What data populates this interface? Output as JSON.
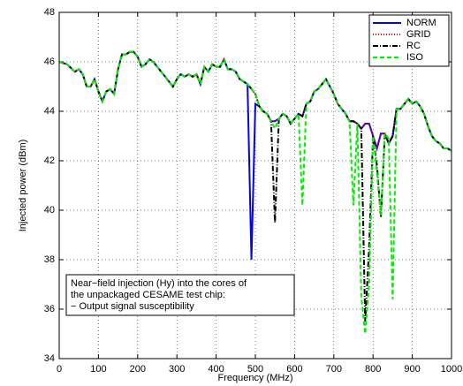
{
  "chart_data": {
    "type": "line",
    "xlabel": "Frequency (MHz)",
    "ylabel": "Injected power (dBm)",
    "annotation": [
      "Near−field injection (Hy) into the cores of",
      "the unpackaged CESAME test chip:",
      "− Output signal susceptibility"
    ],
    "x": [
      0,
      10,
      20,
      30,
      40,
      50,
      60,
      70,
      80,
      90,
      100,
      110,
      120,
      130,
      140,
      150,
      160,
      170,
      180,
      190,
      200,
      210,
      220,
      230,
      240,
      250,
      260,
      270,
      280,
      290,
      300,
      310,
      320,
      330,
      340,
      350,
      360,
      370,
      380,
      390,
      400,
      410,
      420,
      430,
      440,
      450,
      460,
      470,
      480,
      490,
      500,
      510,
      520,
      530,
      540,
      550,
      560,
      570,
      580,
      590,
      600,
      610,
      620,
      630,
      640,
      650,
      660,
      670,
      680,
      690,
      700,
      710,
      720,
      730,
      740,
      750,
      760,
      770,
      780,
      790,
      800,
      810,
      820,
      830,
      840,
      850,
      860,
      870,
      880,
      890,
      900,
      910,
      920,
      930,
      940,
      950,
      960,
      970,
      980,
      990,
      1000
    ],
    "series": [
      {
        "name": "NORM",
        "color": "#0000ff",
        "linestyle": "-",
        "values": [
          46.0,
          45.95,
          45.9,
          45.75,
          45.6,
          45.7,
          45.5,
          45.0,
          45.0,
          45.3,
          44.8,
          44.4,
          44.8,
          44.9,
          44.7,
          45.7,
          46.3,
          46.3,
          46.4,
          46.4,
          46.2,
          45.8,
          45.9,
          46.1,
          46.0,
          45.8,
          45.6,
          45.4,
          45.2,
          45.0,
          45.3,
          45.5,
          45.4,
          45.5,
          45.4,
          45.5,
          45.1,
          45.8,
          45.6,
          45.9,
          45.8,
          45.8,
          46.1,
          45.7,
          45.7,
          45.6,
          45.3,
          45.2,
          45.1,
          38.0,
          44.3,
          44.2,
          44.0,
          43.9,
          43.6,
          43.6,
          43.7,
          43.9,
          43.8,
          43.5,
          43.7,
          43.9,
          43.8,
          44.3,
          44.4,
          44.8,
          44.9,
          45.1,
          45.3,
          45.0,
          44.7,
          44.3,
          44.1,
          43.9,
          43.6,
          43.6,
          43.5,
          43.3,
          43.5,
          43.5,
          43.0,
          42.5,
          43.1,
          43.1,
          42.7,
          43.0,
          44.1,
          44.1,
          44.3,
          44.5,
          44.3,
          44.4,
          44.2,
          43.9,
          43.4,
          43.0,
          42.8,
          42.7,
          42.5,
          42.5,
          42.4
        ]
      },
      {
        "name": "GRID",
        "color": "#ff0000",
        "linestyle": ":",
        "values": [
          46.0,
          45.95,
          45.9,
          45.75,
          45.6,
          45.7,
          45.5,
          45.0,
          45.0,
          45.3,
          44.8,
          44.4,
          44.8,
          44.9,
          44.7,
          45.7,
          46.3,
          46.3,
          46.4,
          46.4,
          46.2,
          45.8,
          45.9,
          46.1,
          46.0,
          45.8,
          45.6,
          45.4,
          45.2,
          45.0,
          45.3,
          45.5,
          45.4,
          45.5,
          45.4,
          45.5,
          45.1,
          45.8,
          45.6,
          45.9,
          45.8,
          45.8,
          46.1,
          45.7,
          45.7,
          45.6,
          45.3,
          45.2,
          45.1,
          44.9,
          44.7,
          44.2,
          44.0,
          43.9,
          43.6,
          43.6,
          43.7,
          43.9,
          43.8,
          43.5,
          43.7,
          43.9,
          43.8,
          44.3,
          44.4,
          44.8,
          44.9,
          45.1,
          45.3,
          45.0,
          44.7,
          44.3,
          44.1,
          43.9,
          43.6,
          43.6,
          43.5,
          43.3,
          43.5,
          43.5,
          43.0,
          42.5,
          43.1,
          43.1,
          42.7,
          43.0,
          44.1,
          44.1,
          44.3,
          44.5,
          44.3,
          44.4,
          44.2,
          43.9,
          43.4,
          43.0,
          42.8,
          42.7,
          42.5,
          42.5,
          42.4
        ]
      },
      {
        "name": "RC",
        "color": "#000000",
        "linestyle": "-.",
        "values": [
          46.0,
          45.95,
          45.9,
          45.75,
          45.6,
          45.7,
          45.5,
          45.0,
          45.0,
          45.3,
          44.8,
          44.4,
          44.8,
          44.9,
          44.7,
          45.7,
          46.3,
          46.3,
          46.4,
          46.4,
          46.2,
          45.8,
          45.9,
          46.1,
          46.0,
          45.8,
          45.6,
          45.4,
          45.2,
          45.0,
          45.3,
          45.5,
          45.4,
          45.5,
          45.4,
          45.5,
          45.1,
          45.8,
          45.6,
          45.9,
          45.8,
          45.8,
          46.1,
          45.7,
          45.7,
          45.6,
          45.3,
          45.2,
          45.1,
          44.9,
          44.7,
          44.2,
          44.0,
          43.9,
          43.6,
          39.5,
          43.7,
          43.9,
          43.8,
          43.5,
          43.7,
          43.9,
          43.8,
          44.3,
          44.4,
          44.8,
          44.9,
          45.1,
          45.3,
          45.0,
          44.7,
          44.3,
          44.1,
          43.9,
          43.6,
          43.6,
          43.5,
          43.3,
          35.5,
          38.5,
          43.0,
          41.8,
          39.7,
          43.1,
          42.7,
          43.0,
          44.1,
          44.1,
          44.3,
          44.5,
          44.3,
          44.4,
          44.2,
          43.9,
          43.4,
          43.0,
          42.8,
          42.7,
          42.5,
          42.5,
          42.4
        ]
      },
      {
        "name": "ISO",
        "color": "#00ee00",
        "linestyle": "--",
        "values": [
          46.0,
          45.95,
          45.9,
          45.75,
          45.6,
          45.7,
          45.5,
          45.0,
          45.0,
          45.3,
          44.8,
          44.4,
          44.8,
          44.9,
          44.7,
          45.7,
          46.3,
          46.3,
          46.4,
          46.4,
          46.2,
          45.8,
          45.9,
          46.1,
          46.0,
          45.8,
          45.6,
          45.4,
          45.2,
          45.0,
          45.3,
          45.5,
          45.4,
          45.5,
          45.4,
          45.5,
          45.1,
          45.8,
          45.6,
          45.9,
          45.8,
          45.8,
          46.1,
          45.7,
          45.7,
          45.6,
          45.3,
          45.2,
          45.1,
          44.9,
          44.7,
          44.2,
          44.0,
          43.9,
          43.6,
          43.3,
          43.7,
          43.9,
          43.8,
          43.5,
          43.7,
          43.9,
          40.2,
          44.3,
          44.4,
          44.8,
          44.9,
          45.1,
          45.3,
          45.0,
          44.7,
          44.3,
          44.1,
          43.9,
          43.6,
          40.2,
          43.5,
          36.5,
          35.0,
          37.0,
          43.0,
          41.5,
          39.8,
          43.1,
          42.9,
          36.4,
          44.1,
          44.1,
          44.3,
          44.5,
          44.3,
          44.4,
          44.2,
          43.9,
          43.4,
          43.0,
          42.8,
          42.7,
          42.5,
          42.5,
          42.4
        ]
      }
    ],
    "xlim": [
      0,
      1000
    ],
    "xticks": [
      0,
      100,
      200,
      300,
      400,
      500,
      600,
      700,
      800,
      900,
      1000
    ],
    "ylim": [
      34,
      48
    ],
    "yticks": [
      34,
      36,
      38,
      40,
      42,
      44,
      46,
      48
    ],
    "grid": true,
    "legend": "upper right"
  }
}
